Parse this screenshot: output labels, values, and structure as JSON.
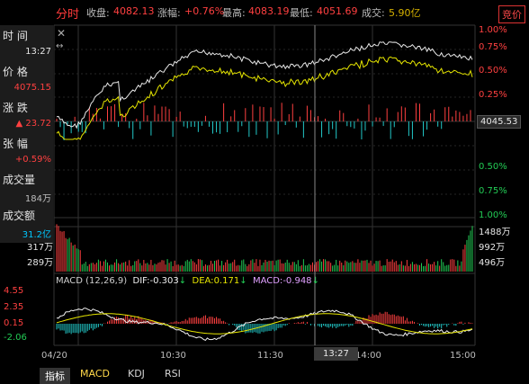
{
  "header": {
    "mode": "分时",
    "close_label": "收盘:",
    "close_value": "4082.13",
    "change_label": "涨幅:",
    "change_value": "+0.76%",
    "high_label": "最高:",
    "high_value": "4083.19",
    "low_label": "最低:",
    "low_value": "4051.69",
    "volume_label": "成交:",
    "volume_value": "5.90亿",
    "badge": "竞价"
  },
  "info_panel": {
    "time_label": "时 间",
    "time_value": "13:27",
    "price_label": "价 格",
    "price_value": "4075.15",
    "change_label": "涨 跌",
    "change_value": "23.72",
    "pct_label": "张 幅",
    "pct_value": "+0.59%",
    "volume_label": "成交量",
    "volume_value": "184万",
    "amount_label": "成交额",
    "amount_value": "31.2亿"
  },
  "price_axis": {
    "right_pcts": [
      "1.00%",
      "0.75%",
      "0.50%",
      "0.25%",
      "0.50%",
      "0.75%",
      "1.00%"
    ],
    "base_value": "4045.53",
    "colors": {
      "up": "#ff4040",
      "down": "#22cc55"
    }
  },
  "volume_axis": {
    "left": [
      "317万",
      "289万"
    ],
    "right": [
      "1488万",
      "992万",
      "496万"
    ]
  },
  "macd": {
    "title": "MACD (12,26,9)",
    "dif_label": "DIF:",
    "dif_value": "-0.303",
    "dea_label": "DEA:",
    "dea_value": "0.171",
    "macd_label": "MACD:",
    "macd_value": "-0.948",
    "left_ticks": [
      "4.55",
      "2.35",
      "0.15",
      "-2.06"
    ]
  },
  "time_axis": {
    "labels": [
      "04/20",
      "10:30",
      "11:30",
      "14:00",
      "15:00"
    ],
    "cursor_time": "13:27"
  },
  "tabs": [
    "指标",
    "MACD",
    "KDJ",
    "RSI"
  ],
  "icons": {
    "close": "close-icon",
    "expand": "expand-icon",
    "arrow_up": "arrow-up-icon",
    "arrow_down": "arrow-down-icon"
  }
}
